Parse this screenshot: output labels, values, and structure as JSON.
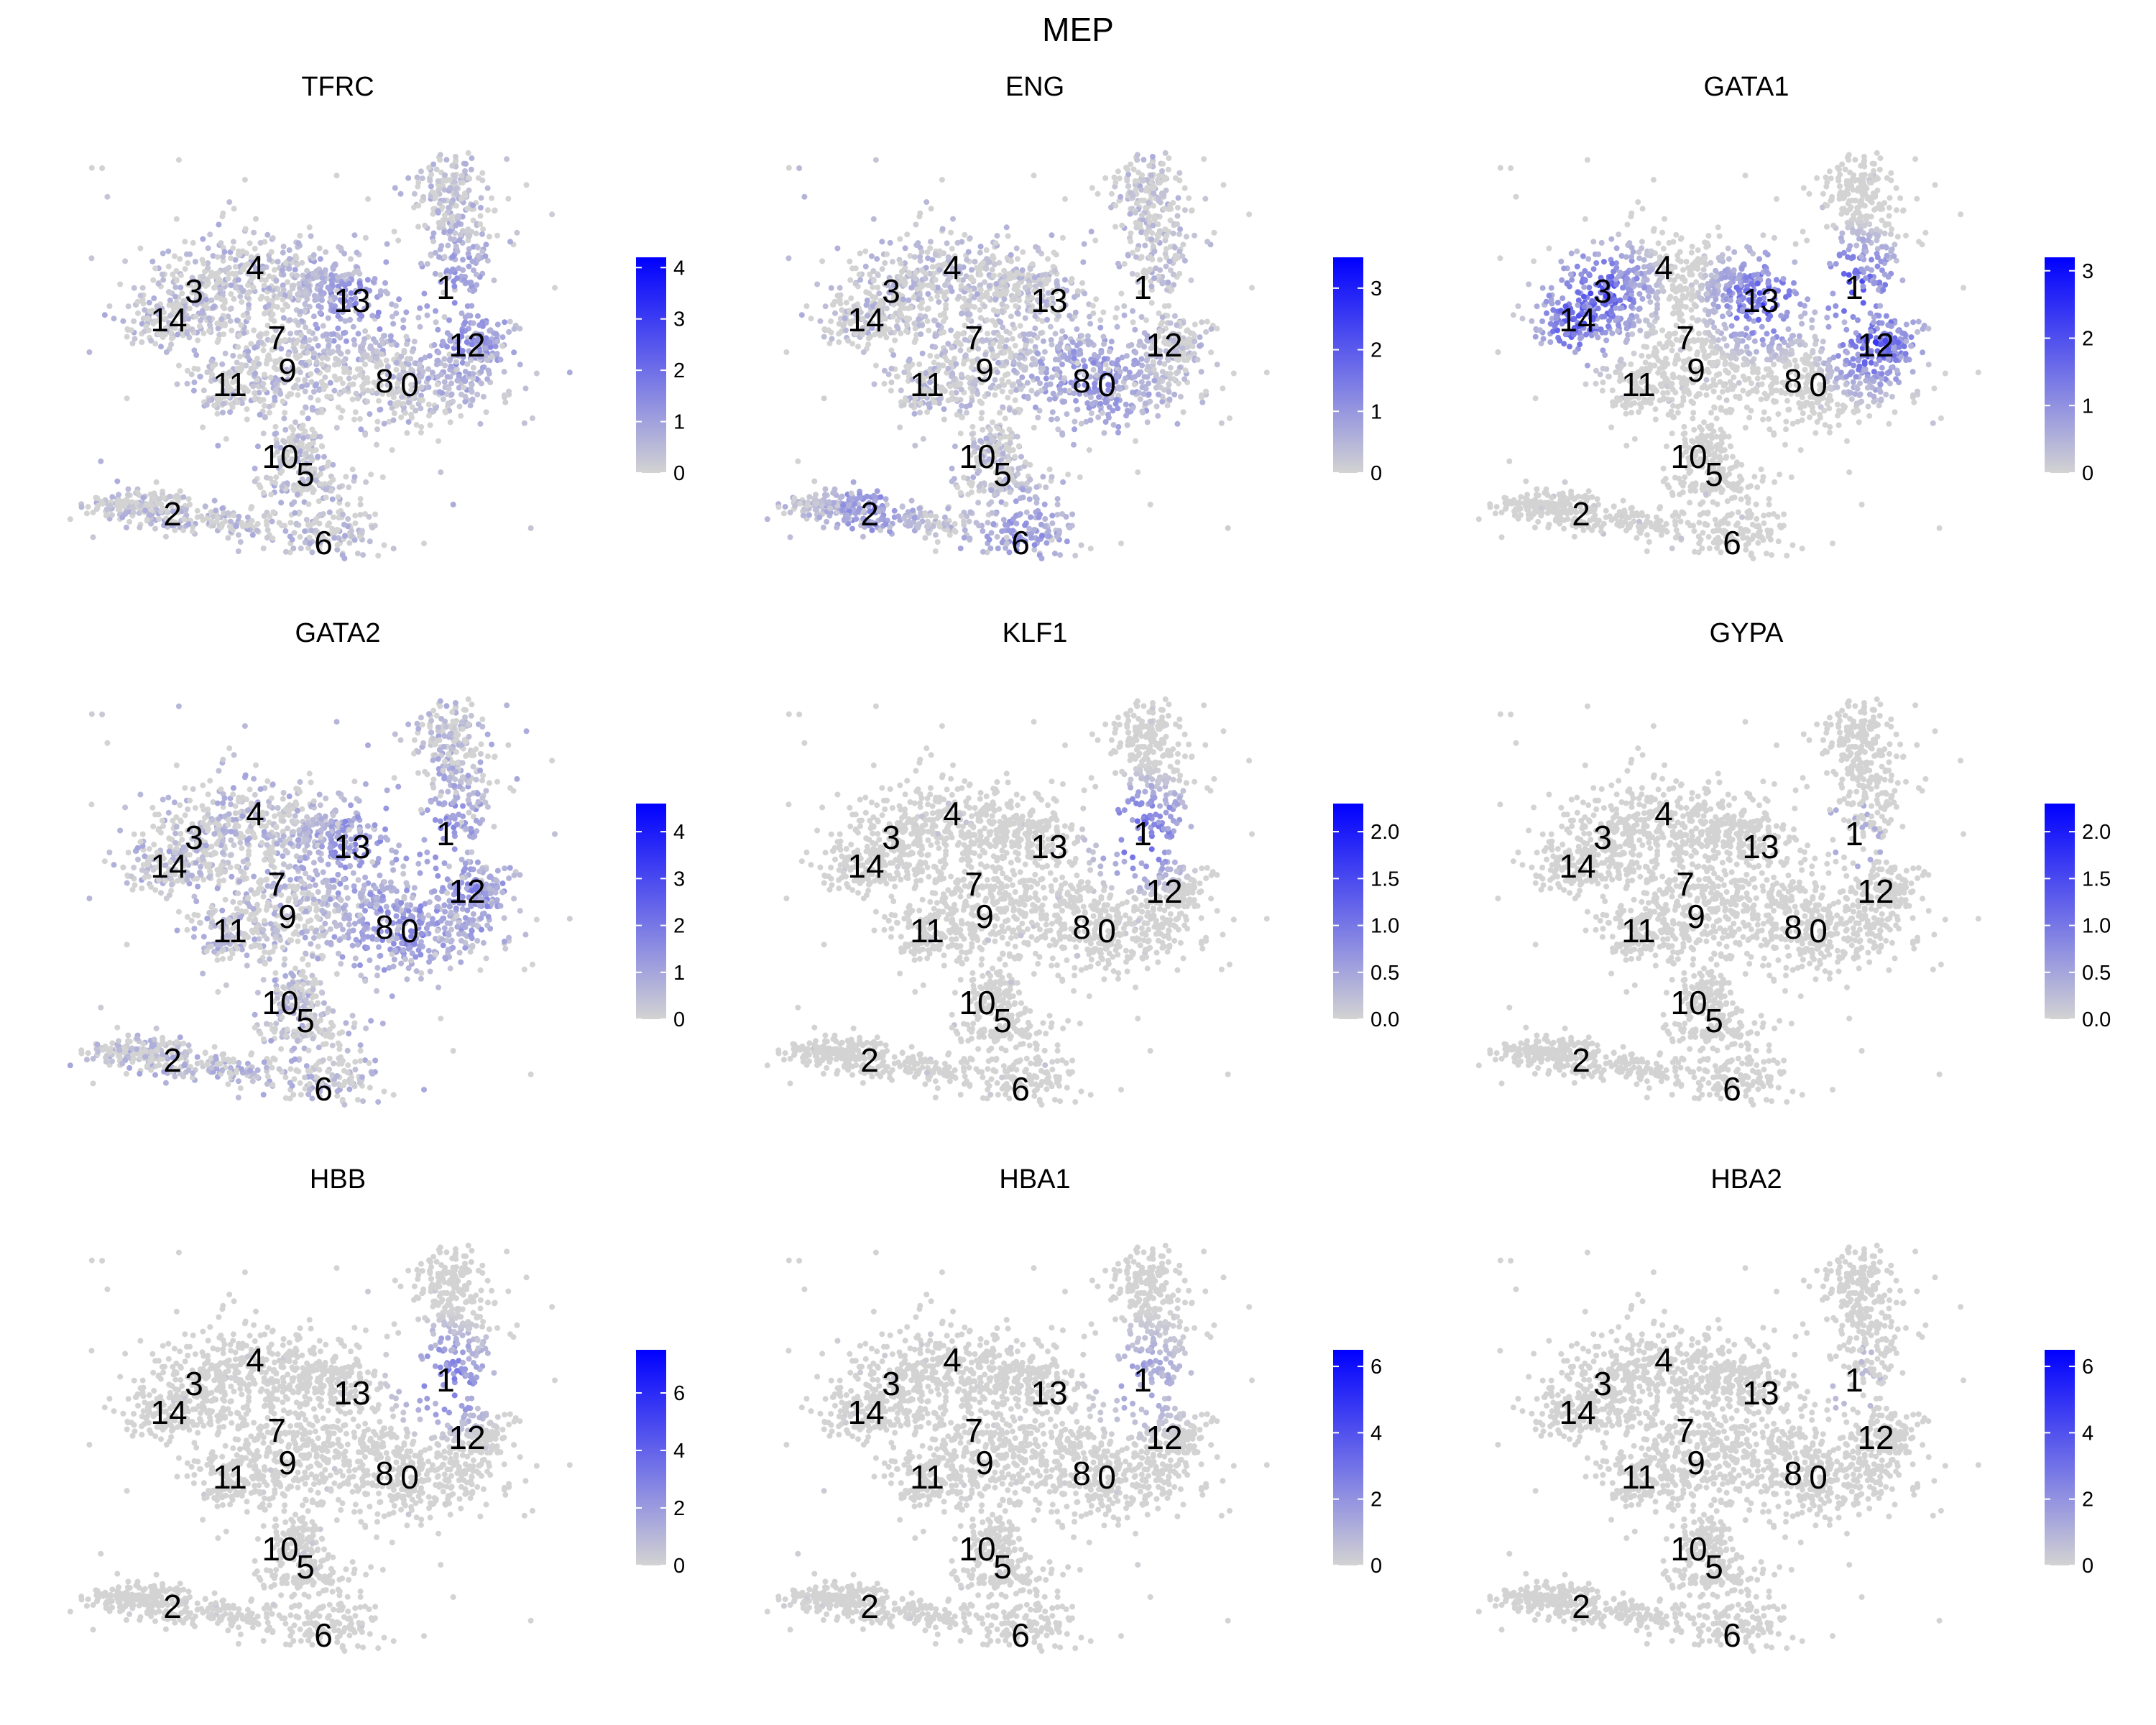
{
  "title": "MEP",
  "colors": {
    "low": "#d3d3d3",
    "high": "#0000ff"
  },
  "chart_data": [
    {
      "type": "scatter",
      "title": "TFRC",
      "colorbar": {
        "min": 0,
        "max": 4.2,
        "ticks": [
          "0",
          "1",
          "2",
          "3",
          "4"
        ],
        "tick_values": [
          0,
          1,
          2,
          3,
          4
        ]
      },
      "pattern": "broad",
      "hot_clusters": [
        "1",
        "12",
        "13"
      ],
      "intensity": 0.55
    },
    {
      "type": "scatter",
      "title": "ENG",
      "colorbar": {
        "min": 0,
        "max": 3.5,
        "ticks": [
          "0",
          "1",
          "2",
          "3"
        ],
        "tick_values": [
          0,
          1,
          2,
          3
        ]
      },
      "pattern": "broad",
      "hot_clusters": [
        "2",
        "6",
        "0",
        "8"
      ],
      "intensity": 0.5
    },
    {
      "type": "scatter",
      "title": "GATA1",
      "colorbar": {
        "min": 0,
        "max": 3.2,
        "ticks": [
          "0",
          "1",
          "2",
          "3"
        ],
        "tick_values": [
          0,
          1,
          2,
          3
        ]
      },
      "pattern": "focal",
      "hot_clusters": [
        "1",
        "12",
        "13",
        "14",
        "3"
      ],
      "intensity": 0.75
    },
    {
      "type": "scatter",
      "title": "GATA2",
      "colorbar": {
        "min": 0,
        "max": 4.6,
        "ticks": [
          "0",
          "1",
          "2",
          "3",
          "4"
        ],
        "tick_values": [
          0,
          1,
          2,
          3,
          4
        ]
      },
      "pattern": "broad",
      "hot_clusters": [
        "1",
        "12",
        "13",
        "0",
        "8"
      ],
      "intensity": 0.6
    },
    {
      "type": "scatter",
      "title": "KLF1",
      "colorbar": {
        "min": 0,
        "max": 2.3,
        "ticks": [
          "0.0",
          "0.5",
          "1.0",
          "1.5",
          "2.0"
        ],
        "tick_values": [
          0,
          0.5,
          1,
          1.5,
          2
        ]
      },
      "pattern": "focal",
      "hot_clusters": [
        "1"
      ],
      "intensity": 0.7
    },
    {
      "type": "scatter",
      "title": "GYPA",
      "colorbar": {
        "min": 0,
        "max": 2.3,
        "ticks": [
          "0.0",
          "0.5",
          "1.0",
          "1.5",
          "2.0"
        ],
        "tick_values": [
          0,
          0.5,
          1,
          1.5,
          2
        ]
      },
      "pattern": "sparse",
      "hot_clusters": [
        "1"
      ],
      "intensity": 0.4
    },
    {
      "type": "scatter",
      "title": "HBB",
      "colorbar": {
        "min": 0,
        "max": 7.5,
        "ticks": [
          "0",
          "2",
          "4",
          "6"
        ],
        "tick_values": [
          0,
          2,
          4,
          6
        ]
      },
      "pattern": "focal",
      "hot_clusters": [
        "1"
      ],
      "intensity": 0.6
    },
    {
      "type": "scatter",
      "title": "HBA1",
      "colorbar": {
        "min": 0,
        "max": 6.5,
        "ticks": [
          "0",
          "2",
          "4",
          "6"
        ],
        "tick_values": [
          0,
          2,
          4,
          6
        ]
      },
      "pattern": "focal",
      "hot_clusters": [
        "1"
      ],
      "intensity": 0.35
    },
    {
      "type": "scatter",
      "title": "HBA2",
      "colorbar": {
        "min": 0,
        "max": 6.5,
        "ticks": [
          "0",
          "2",
          "4",
          "6"
        ],
        "tick_values": [
          0,
          2,
          4,
          6
        ]
      },
      "pattern": "sparse",
      "hot_clusters": [
        "1"
      ],
      "intensity": 0.25
    }
  ],
  "clusters": [
    "0",
    "1",
    "2",
    "3",
    "4",
    "5",
    "6",
    "7",
    "8",
    "9",
    "10",
    "11",
    "12",
    "13",
    "14"
  ]
}
